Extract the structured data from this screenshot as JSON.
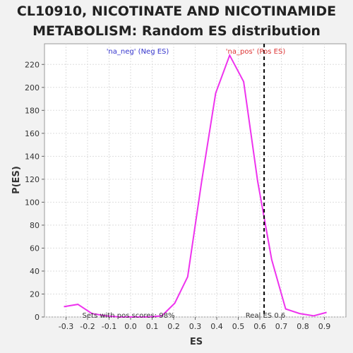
{
  "title_line1": "CL10910, NICOTINATE AND NICOTINAMIDE",
  "title_line2": "METABOLISM: Random ES distribution",
  "colors": {
    "line": "#ee33ee",
    "neg_label": "#3333cc",
    "pos_label": "#dd3333",
    "real_es_line": "#000000",
    "plot_bg": "#ffffff",
    "grid": "#dddddd"
  },
  "chart_data": {
    "type": "line",
    "xlabel": "ES",
    "ylabel": "P(ES)",
    "xlim": [
      -0.4,
      1.0
    ],
    "ylim": [
      0,
      238
    ],
    "x_ticks": [
      -0.3,
      -0.2,
      -0.1,
      0.0,
      0.1,
      0.2,
      0.3,
      0.4,
      0.5,
      0.6,
      0.7,
      0.8,
      0.9
    ],
    "x_tick_labels": [
      "-0.3",
      "-0.2",
      "-0.1",
      "0.0",
      "0.1",
      "0.2",
      "0.3",
      "0.4",
      "0.5",
      "0.6",
      "0.7",
      "0.8",
      "0.9"
    ],
    "y_ticks": [
      0,
      20,
      40,
      60,
      80,
      100,
      120,
      140,
      160,
      180,
      200,
      220
    ],
    "y_tick_labels": [
      "0",
      "20",
      "40",
      "60",
      "80",
      "100",
      "120",
      "140",
      "160",
      "180",
      "200",
      "220"
    ],
    "grid": true,
    "series": [
      {
        "x": [
          -0.31,
          -0.245,
          -0.18,
          -0.115,
          -0.05,
          0.015,
          0.08,
          0.145,
          0.205,
          0.265,
          0.33,
          0.395,
          0.46,
          0.525,
          0.59,
          0.655,
          0.72,
          0.785,
          0.85,
          0.91
        ],
        "y": [
          9,
          11,
          3,
          1,
          0,
          0,
          0,
          1,
          12,
          35,
          118,
          195,
          228,
          205,
          118,
          50,
          7,
          3,
          1,
          4
        ]
      }
    ],
    "real_es": 0.62,
    "annotations": {
      "neg": "'na_neg' (Neg ES)",
      "pos": "'na_pos' (Pos ES)",
      "sets_pos": "Sets with pos scores: 98%",
      "real_es": "Real ES 0.6"
    }
  }
}
